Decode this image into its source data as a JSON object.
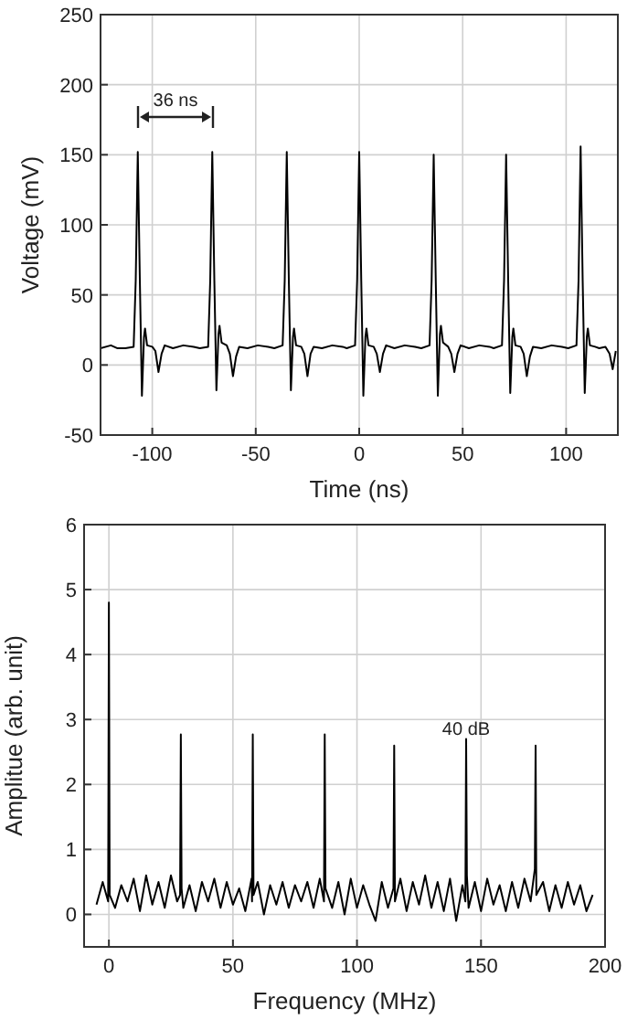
{
  "chart_data": [
    {
      "type": "line",
      "xlabel": "Time (ns)",
      "ylabel": "Voltage (mV)",
      "xlim": [
        -125,
        125
      ],
      "ylim": [
        -50,
        250
      ],
      "xticks": [
        -100,
        -50,
        0,
        50,
        100
      ],
      "yticks": [
        -50,
        0,
        50,
        100,
        150,
        200,
        250
      ],
      "grid": true,
      "annotations": [
        "36 ns"
      ],
      "series": [
        {
          "color": "#000000",
          "x": [
            -125,
            -120,
            -117,
            -113,
            -109,
            -108,
            -107,
            -106,
            -105,
            -104,
            -103.5,
            -102.5,
            -100,
            -98.5,
            -97,
            -95.5,
            -94,
            -90,
            -85,
            -80,
            -77,
            -73,
            -72,
            -71,
            -70,
            -69,
            -68,
            -67.5,
            -66.5,
            -64,
            -62.5,
            -61,
            -59.5,
            -58,
            -54,
            -49,
            -44,
            -41,
            -37,
            -36,
            -35,
            -34,
            -33,
            -32,
            -31.5,
            -30.5,
            -28,
            -26.5,
            -25,
            -23.5,
            -22,
            -18,
            -13,
            -8,
            -6,
            -2,
            -1,
            0,
            1,
            2,
            3,
            3.5,
            4.5,
            7,
            8.5,
            10,
            11.5,
            13,
            17,
            22,
            27,
            30,
            34,
            35,
            36,
            37,
            38,
            39,
            39.5,
            40.5,
            43,
            44.5,
            46,
            47.5,
            49,
            53,
            58,
            63,
            65,
            69,
            70,
            71,
            72,
            73,
            74,
            74.5,
            75.5,
            78,
            79.5,
            81,
            82.5,
            84,
            88,
            93,
            98,
            101,
            105,
            106,
            107,
            108,
            109,
            110,
            110.5,
            111.5,
            114,
            116,
            119,
            121,
            122.5,
            124
          ],
          "values": [
            12,
            14,
            12,
            12,
            13,
            60,
            152,
            60,
            -22,
            20,
            26,
            14,
            13,
            10,
            -5,
            8,
            14,
            12,
            14,
            13,
            12,
            13,
            60,
            152,
            60,
            -18,
            22,
            28,
            16,
            14,
            8,
            -8,
            6,
            13,
            12,
            14,
            13,
            12,
            14,
            60,
            152,
            60,
            -18,
            20,
            26,
            14,
            13,
            8,
            -8,
            8,
            13,
            12,
            14,
            13,
            12,
            14,
            60,
            152,
            60,
            -22,
            20,
            26,
            14,
            13,
            8,
            -5,
            8,
            14,
            12,
            14,
            13,
            12,
            14,
            60,
            150,
            60,
            -22,
            22,
            28,
            16,
            13,
            8,
            -5,
            8,
            14,
            12,
            14,
            13,
            12,
            14,
            60,
            150,
            60,
            -20,
            20,
            26,
            14,
            13,
            8,
            -8,
            6,
            13,
            12,
            14,
            13,
            12,
            14,
            60,
            156,
            60,
            -20,
            20,
            26,
            14,
            13,
            12,
            13,
            8,
            -3,
            10
          ]
        }
      ]
    },
    {
      "type": "line",
      "xlabel": "Frequency (MHz)",
      "ylabel": "Amplitue (arb. unit)",
      "xlim": [
        -10,
        200
      ],
      "ylim": [
        -0.5,
        6
      ],
      "xticks": [
        0,
        50,
        100,
        150,
        200
      ],
      "yticks": [
        0,
        1,
        2,
        3,
        4,
        5,
        6
      ],
      "grid": true,
      "annotations": [
        "40 dB"
      ],
      "series": [
        {
          "color": "#000000",
          "x": [
            -5,
            -2.5,
            -0.3,
            0,
            0.3,
            2.5,
            5,
            7.5,
            10,
            12.5,
            15,
            17.5,
            20,
            22.5,
            25,
            27.5,
            28.7,
            29,
            29.3,
            30,
            32.5,
            35,
            37.5,
            40,
            42.5,
            45,
            47.5,
            50,
            52.5,
            55,
            57.5,
            57.7,
            58,
            58.3,
            60,
            62.5,
            65,
            67.5,
            70,
            72.5,
            75,
            77.5,
            80,
            82.5,
            85,
            86.7,
            87,
            87.3,
            90,
            92.5,
            95,
            97.5,
            100,
            102.5,
            105,
            107.5,
            110,
            112.5,
            114.7,
            115,
            115.3,
            117.5,
            120,
            122.5,
            125,
            127.5,
            130,
            132.5,
            135,
            137.5,
            140,
            142.5,
            143.7,
            144,
            144.3,
            145,
            147.5,
            150,
            152.5,
            155,
            157.5,
            160,
            162.5,
            165,
            167.5,
            170,
            171.7,
            172,
            172.3,
            175,
            177.5,
            180,
            182.5,
            185,
            187.5,
            190,
            192.5,
            195
          ],
          "values": [
            0.15,
            0.5,
            0.2,
            4.8,
            0.3,
            0.1,
            0.45,
            0.2,
            0.55,
            0.05,
            0.6,
            0.15,
            0.5,
            0.1,
            0.6,
            0.2,
            0.3,
            2.77,
            0.4,
            0.1,
            0.45,
            0.05,
            0.5,
            0.2,
            0.55,
            0.1,
            0.5,
            0.15,
            0.4,
            0.05,
            0.55,
            0.2,
            2.77,
            0.3,
            0.5,
            0,
            0.45,
            0.15,
            0.5,
            0.1,
            0.45,
            0.2,
            0.5,
            0.1,
            0.55,
            0.2,
            2.77,
            0.4,
            0.1,
            0.5,
            0,
            0.55,
            0.1,
            0.45,
            0.15,
            -0.1,
            0.5,
            0.1,
            0.4,
            2.6,
            0.2,
            0.55,
            0.05,
            0.5,
            0.15,
            0.6,
            0.1,
            0.5,
            0.05,
            0.55,
            -0.1,
            0.45,
            0.2,
            2.7,
            0.6,
            0.1,
            0.5,
            0.05,
            0.55,
            0.15,
            0.45,
            0.05,
            0.5,
            0.1,
            0.55,
            0.2,
            0.7,
            2.6,
            0.3,
            0.5,
            0.05,
            0.45,
            0.1,
            0.5,
            0.15,
            0.45,
            0.05,
            0.3
          ]
        }
      ]
    }
  ]
}
